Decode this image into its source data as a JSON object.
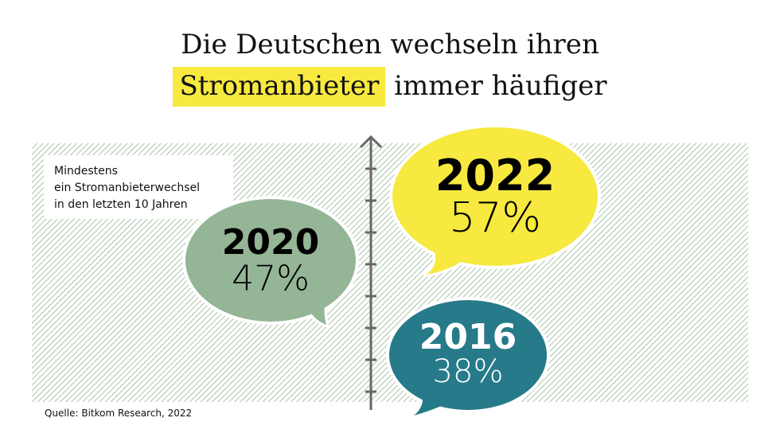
{
  "title": {
    "line1": "Die Deutschen wechseln ihren",
    "highlight": "Stromanbieter",
    "line2_rest": "immer häufiger"
  },
  "legend": {
    "line1": "Mindestens",
    "line2": "ein Stromanbieterwechsel",
    "line3": "in den letzten 10 Jahren"
  },
  "source": "Quelle: Bitkom Research, 2022",
  "colors": {
    "highlight": "#f7e93f",
    "hatch": "#a9c4a9",
    "axis": "#6b6666",
    "2022": "#f7e93f",
    "2020": "#94b596",
    "2016": "#267a89"
  },
  "chart_data": {
    "type": "bubble-timeline",
    "categories": [
      "2016",
      "2020",
      "2022"
    ],
    "values": [
      38,
      47,
      57
    ],
    "labels": {
      "2016": "38%",
      "2020": "47%",
      "2022": "57%"
    },
    "unit": "%"
  }
}
